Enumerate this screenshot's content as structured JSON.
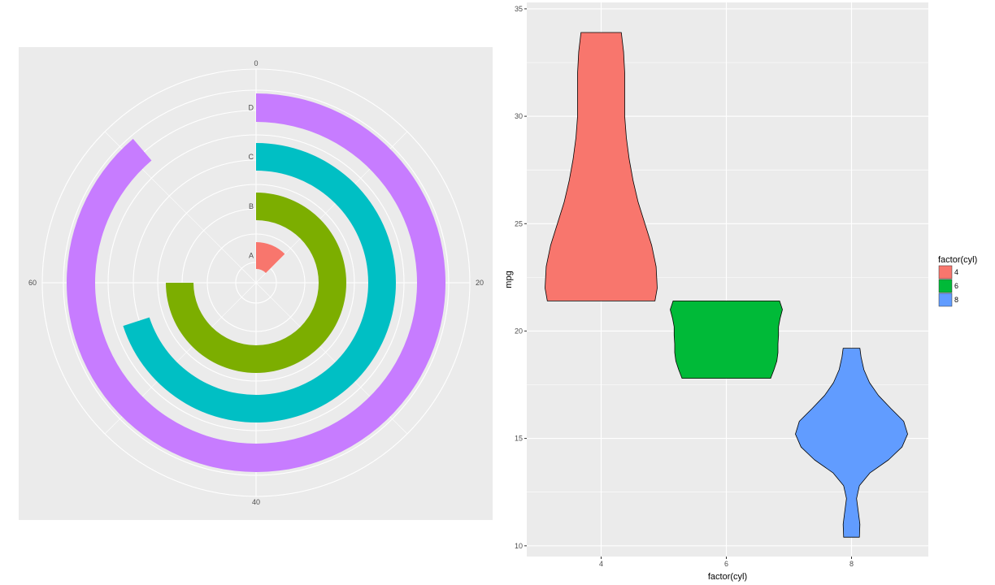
{
  "chart_data": [
    {
      "type": "bar",
      "coord": "polar",
      "theta_range": [
        0,
        80
      ],
      "theta_ticks": [
        "0",
        "20",
        "40",
        "60"
      ],
      "categories": [
        "A",
        "B",
        "C",
        "D"
      ],
      "values": [
        10,
        60,
        56,
        71
      ],
      "colors": [
        "#F8766D",
        "#7CAE00",
        "#00BFC4",
        "#C77CFF"
      ],
      "background": "#EBEBEB",
      "grid": true,
      "legend": "none"
    },
    {
      "type": "violin",
      "xlabel": "factor(cyl)",
      "ylabel": "mpg",
      "categories": [
        "4",
        "6",
        "8"
      ],
      "x_ticks": [
        "4",
        "6",
        "8"
      ],
      "y_ticks": [
        "10",
        "15",
        "20",
        "25",
        "30",
        "35"
      ],
      "ylim": [
        9.5,
        35.3
      ],
      "background": "#EBEBEB",
      "grid": true,
      "legend_position": "right",
      "legend_title": "factor(cyl)",
      "legend": [
        {
          "label": "4",
          "color": "#F8766D"
        },
        {
          "label": "6",
          "color": "#00BA38"
        },
        {
          "label": "8",
          "color": "#619CFF"
        }
      ],
      "series": [
        {
          "group": "4",
          "color": "#F8766D",
          "range": [
            21.4,
            33.9
          ],
          "profile": [
            [
              21.4,
              0.96
            ],
            [
              22.0,
              1.0
            ],
            [
              23.0,
              0.98
            ],
            [
              24.0,
              0.9
            ],
            [
              25.0,
              0.78
            ],
            [
              26.0,
              0.66
            ],
            [
              27.0,
              0.57
            ],
            [
              28.0,
              0.5
            ],
            [
              29.0,
              0.45
            ],
            [
              30.0,
              0.42
            ],
            [
              31.0,
              0.42
            ],
            [
              32.0,
              0.42
            ],
            [
              33.0,
              0.4
            ],
            [
              33.9,
              0.36
            ]
          ]
        },
        {
          "group": "6",
          "color": "#00BA38",
          "range": [
            17.8,
            21.4
          ],
          "profile": [
            [
              17.8,
              0.79
            ],
            [
              18.2,
              0.85
            ],
            [
              18.6,
              0.9
            ],
            [
              19.0,
              0.92
            ],
            [
              19.4,
              0.92
            ],
            [
              19.8,
              0.93
            ],
            [
              20.2,
              0.93
            ],
            [
              20.6,
              0.96
            ],
            [
              21.0,
              1.0
            ],
            [
              21.4,
              0.95
            ]
          ]
        },
        {
          "group": "8",
          "color": "#619CFF",
          "range": [
            10.4,
            19.2
          ],
          "profile": [
            [
              10.4,
              0.14
            ],
            [
              11.0,
              0.15
            ],
            [
              11.6,
              0.12
            ],
            [
              12.2,
              0.09
            ],
            [
              12.8,
              0.14
            ],
            [
              13.4,
              0.33
            ],
            [
              14.0,
              0.66
            ],
            [
              14.6,
              0.9
            ],
            [
              15.2,
              1.0
            ],
            [
              15.8,
              0.93
            ],
            [
              16.4,
              0.7
            ],
            [
              17.0,
              0.48
            ],
            [
              17.6,
              0.32
            ],
            [
              18.2,
              0.22
            ],
            [
              18.8,
              0.17
            ],
            [
              19.2,
              0.15
            ]
          ]
        }
      ]
    }
  ]
}
